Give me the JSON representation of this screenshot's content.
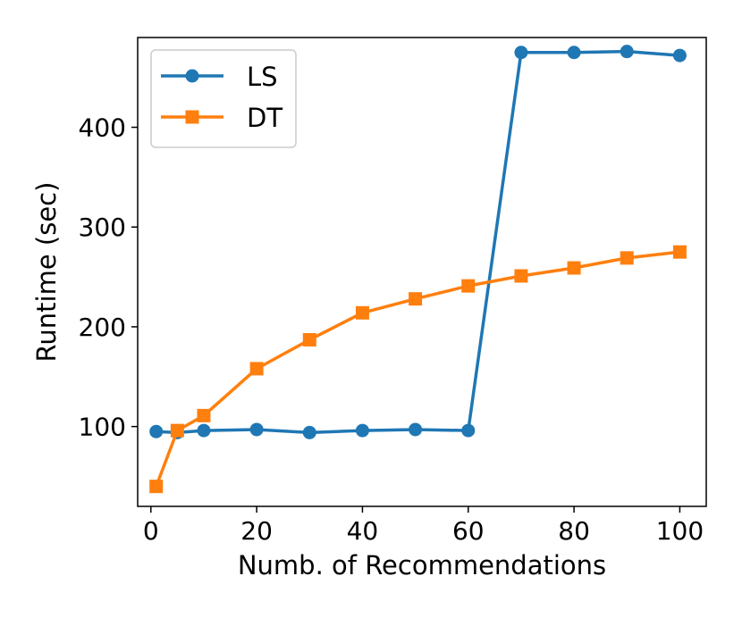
{
  "chart_data": {
    "type": "line",
    "title": "",
    "xlabel": "Numb. of Recommendations",
    "ylabel": "Runtime (sec)",
    "xlim": [
      -2.5,
      105
    ],
    "ylim": [
      20,
      490
    ],
    "xticks": [
      0,
      20,
      40,
      60,
      80,
      100
    ],
    "yticks": [
      100,
      200,
      300,
      400
    ],
    "grid": false,
    "legend_position": "top-left",
    "series": [
      {
        "name": "LS",
        "color": "#1f77b4",
        "marker": "circle",
        "x": [
          1,
          5,
          10,
          20,
          30,
          40,
          50,
          60,
          70,
          80,
          90,
          100
        ],
        "y": [
          95,
          94,
          96,
          97,
          94,
          96,
          97,
          96,
          475,
          475,
          476,
          472
        ]
      },
      {
        "name": "DT",
        "color": "#ff7f0e",
        "marker": "square",
        "x": [
          1,
          5,
          10,
          20,
          30,
          40,
          50,
          60,
          70,
          80,
          90,
          100
        ],
        "y": [
          40,
          96,
          111,
          158,
          187,
          214,
          228,
          241,
          251,
          259,
          269,
          275
        ]
      }
    ]
  }
}
